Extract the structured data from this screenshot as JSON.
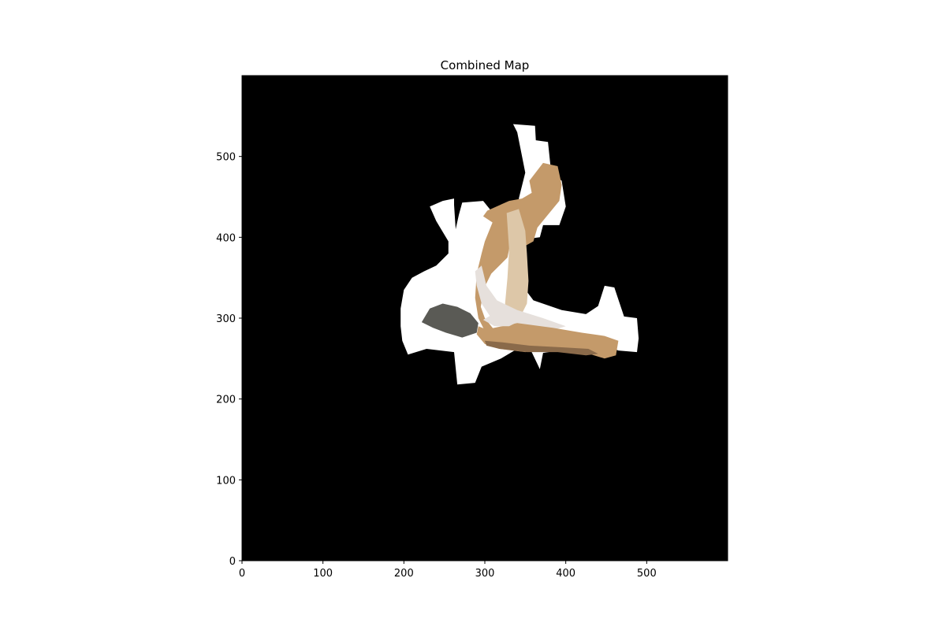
{
  "chart_data": {
    "type": "heatmap",
    "title": "Combined Map",
    "xlabel": "",
    "ylabel": "",
    "xlim": [
      0,
      600
    ],
    "ylim": [
      0,
      600
    ],
    "origin": "lower",
    "x_ticks": [
      0,
      100,
      200,
      300,
      400,
      500
    ],
    "y_ticks": [
      0,
      100,
      200,
      300,
      400,
      500
    ],
    "grid": false,
    "colors": {
      "background": "#000000",
      "free_space": "#ffffff",
      "surface_tan": "#c49a6a",
      "surface_light": "#ddc7a8",
      "surface_dark": "#8a6a4a",
      "surface_pale": "#e6e0dc",
      "surface_grey": "#5a5a55"
    },
    "regions": [
      {
        "name": "free-space",
        "color": "free_space",
        "points": [
          [
            335,
            540
          ],
          [
            362,
            538
          ],
          [
            363,
            520
          ],
          [
            378,
            518
          ],
          [
            382,
            480
          ],
          [
            395,
            470
          ],
          [
            400,
            438
          ],
          [
            392,
            415
          ],
          [
            372,
            415
          ],
          [
            368,
            400
          ],
          [
            352,
            398
          ],
          [
            338,
            390
          ],
          [
            318,
            402
          ],
          [
            310,
            430
          ],
          [
            298,
            445
          ],
          [
            272,
            443
          ],
          [
            268,
            428
          ],
          [
            264,
            410
          ],
          [
            262,
            440
          ],
          [
            262,
            448
          ],
          [
            248,
            445
          ],
          [
            232,
            438
          ],
          [
            240,
            420
          ],
          [
            255,
            395
          ],
          [
            255,
            380
          ],
          [
            240,
            365
          ],
          [
            225,
            358
          ],
          [
            210,
            350
          ],
          [
            200,
            335
          ],
          [
            196,
            312
          ],
          [
            196,
            290
          ],
          [
            198,
            272
          ],
          [
            205,
            255
          ],
          [
            228,
            262
          ],
          [
            262,
            258
          ],
          [
            266,
            218
          ],
          [
            288,
            220
          ],
          [
            296,
            240
          ],
          [
            320,
            250
          ],
          [
            340,
            262
          ],
          [
            358,
            258
          ],
          [
            368,
            237
          ],
          [
            372,
            257
          ],
          [
            392,
            260
          ],
          [
            428,
            270
          ],
          [
            445,
            268
          ],
          [
            465,
            260
          ],
          [
            488,
            258
          ],
          [
            490,
            275
          ],
          [
            488,
            300
          ],
          [
            472,
            302
          ],
          [
            460,
            338
          ],
          [
            448,
            340
          ],
          [
            440,
            315
          ],
          [
            425,
            305
          ],
          [
            395,
            310
          ],
          [
            360,
            322
          ],
          [
            345,
            342
          ],
          [
            348,
            405
          ],
          [
            342,
            448
          ],
          [
            350,
            480
          ],
          [
            345,
            505
          ],
          [
            340,
            530
          ]
        ]
      },
      {
        "name": "surface-upper",
        "color": "surface_tan",
        "points": [
          [
            355,
            470
          ],
          [
            372,
            492
          ],
          [
            390,
            488
          ],
          [
            395,
            465
          ],
          [
            392,
            445
          ],
          [
            378,
            428
          ],
          [
            365,
            412
          ],
          [
            360,
            395
          ],
          [
            342,
            385
          ],
          [
            328,
            393
          ],
          [
            310,
            418
          ],
          [
            298,
            426
          ],
          [
            303,
            433
          ],
          [
            330,
            445
          ],
          [
            346,
            448
          ],
          [
            358,
            455
          ]
        ]
      },
      {
        "name": "surface-diagonal",
        "color": "surface_tan",
        "points": [
          [
            300,
            395
          ],
          [
            315,
            432
          ],
          [
            330,
            432
          ],
          [
            335,
            410
          ],
          [
            328,
            375
          ],
          [
            308,
            355
          ],
          [
            298,
            335
          ],
          [
            295,
            314
          ],
          [
            300,
            300
          ],
          [
            312,
            285
          ],
          [
            322,
            280
          ],
          [
            302,
            280
          ],
          [
            292,
            300
          ],
          [
            288,
            325
          ],
          [
            290,
            355
          ],
          [
            296,
            380
          ]
        ]
      },
      {
        "name": "surface-vertical",
        "color": "surface_light",
        "points": [
          [
            327,
            430
          ],
          [
            342,
            435
          ],
          [
            350,
            408
          ],
          [
            352,
            380
          ],
          [
            354,
            346
          ],
          [
            352,
            318
          ],
          [
            342,
            298
          ],
          [
            330,
            295
          ],
          [
            325,
            318
          ],
          [
            328,
            350
          ],
          [
            330,
            385
          ]
        ]
      },
      {
        "name": "surface-pale-strip",
        "color": "surface_pale",
        "points": [
          [
            288,
            358
          ],
          [
            296,
            365
          ],
          [
            302,
            340
          ],
          [
            315,
            322
          ],
          [
            340,
            310
          ],
          [
            372,
            300
          ],
          [
            400,
            290
          ],
          [
            380,
            284
          ],
          [
            340,
            292
          ],
          [
            308,
            300
          ],
          [
            296,
            318
          ],
          [
            290,
            340
          ]
        ]
      },
      {
        "name": "surface-lower",
        "color": "surface_tan",
        "points": [
          [
            292,
            290
          ],
          [
            302,
            286
          ],
          [
            340,
            294
          ],
          [
            384,
            288
          ],
          [
            420,
            282
          ],
          [
            448,
            278
          ],
          [
            465,
            272
          ],
          [
            462,
            254
          ],
          [
            448,
            250
          ],
          [
            422,
            258
          ],
          [
            392,
            262
          ],
          [
            350,
            258
          ],
          [
            318,
            262
          ],
          [
            300,
            268
          ],
          [
            290,
            280
          ]
        ]
      },
      {
        "name": "surface-dark-band",
        "color": "surface_dark",
        "points": [
          [
            300,
            272
          ],
          [
            322,
            270
          ],
          [
            355,
            266
          ],
          [
            395,
            264
          ],
          [
            428,
            262
          ],
          [
            440,
            256
          ],
          [
            425,
            254
          ],
          [
            390,
            258
          ],
          [
            352,
            258
          ],
          [
            318,
            262
          ],
          [
            302,
            266
          ]
        ]
      },
      {
        "name": "surface-grey-fan",
        "color": "surface_grey",
        "points": [
          [
            222,
            295
          ],
          [
            232,
            312
          ],
          [
            248,
            318
          ],
          [
            266,
            314
          ],
          [
            282,
            306
          ],
          [
            292,
            294
          ],
          [
            290,
            282
          ],
          [
            272,
            276
          ],
          [
            252,
            282
          ],
          [
            236,
            288
          ]
        ]
      },
      {
        "name": "surface-pale-end",
        "color": "surface_pale",
        "points": [
          [
            298,
            298
          ],
          [
            312,
            306
          ],
          [
            330,
            304
          ],
          [
            340,
            295
          ],
          [
            330,
            290
          ],
          [
            312,
            290
          ]
        ]
      }
    ]
  }
}
